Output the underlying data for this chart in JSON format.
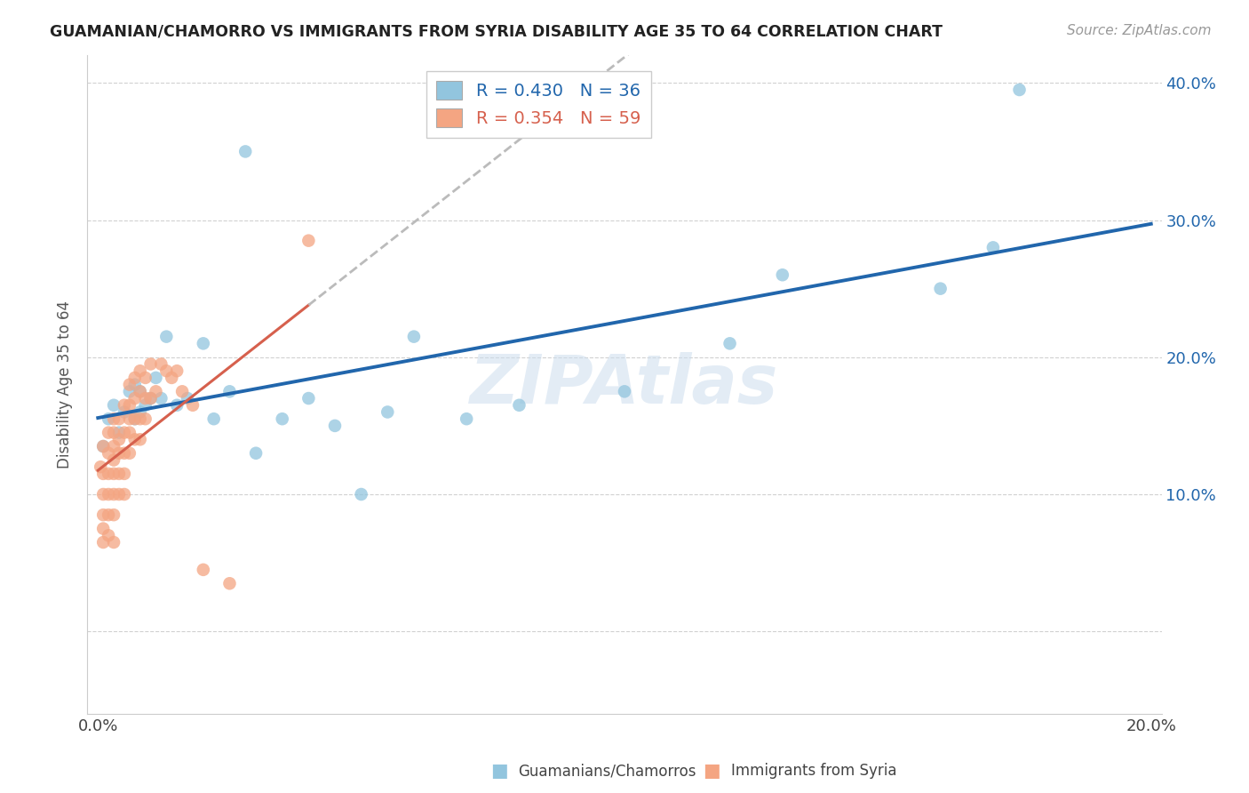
{
  "title": "GUAMANIAN/CHAMORRO VS IMMIGRANTS FROM SYRIA DISABILITY AGE 35 TO 64 CORRELATION CHART",
  "source": "Source: ZipAtlas.com",
  "xlabel_blue": "Guamanians/Chamorros",
  "xlabel_pink": "Immigrants from Syria",
  "ylabel_label": "Disability Age 35 to 64",
  "xlim": [
    -0.002,
    0.202
  ],
  "ylim": [
    -0.06,
    0.42
  ],
  "xticks": [
    0.0,
    0.05,
    0.1,
    0.15,
    0.2
  ],
  "xtick_labels": [
    "0.0%",
    "",
    "",
    "",
    "20.0%"
  ],
  "yticks": [
    0.0,
    0.1,
    0.2,
    0.3,
    0.4
  ],
  "ytick_right_labels": [
    "",
    "10.0%",
    "20.0%",
    "30.0%",
    "40.0%"
  ],
  "blue_R": 0.43,
  "blue_N": 36,
  "pink_R": 0.354,
  "pink_N": 59,
  "blue_color": "#92c5de",
  "pink_color": "#f4a582",
  "trendline_blue": "#2166ac",
  "trendline_pink": "#d6604d",
  "trendline_extrap": "#bbbbbb",
  "watermark": "ZIPAtlas",
  "blue_x": [
    0.001,
    0.002,
    0.003,
    0.004,
    0.005,
    0.006,
    0.007,
    0.007,
    0.008,
    0.008,
    0.009,
    0.01,
    0.011,
    0.012,
    0.013,
    0.015,
    0.017,
    0.02,
    0.022,
    0.025,
    0.028,
    0.03,
    0.035,
    0.04,
    0.05,
    0.055,
    0.06,
    0.07,
    0.08,
    0.1,
    0.13,
    0.16,
    0.17,
    0.175,
    0.12,
    0.045
  ],
  "blue_y": [
    0.135,
    0.155,
    0.165,
    0.145,
    0.16,
    0.175,
    0.155,
    0.18,
    0.16,
    0.175,
    0.165,
    0.17,
    0.185,
    0.17,
    0.215,
    0.165,
    0.17,
    0.21,
    0.155,
    0.175,
    0.35,
    0.13,
    0.155,
    0.17,
    0.1,
    0.16,
    0.215,
    0.155,
    0.165,
    0.175,
    0.26,
    0.25,
    0.28,
    0.395,
    0.21,
    0.15
  ],
  "pink_x": [
    0.0005,
    0.001,
    0.001,
    0.001,
    0.001,
    0.001,
    0.001,
    0.002,
    0.002,
    0.002,
    0.002,
    0.002,
    0.002,
    0.003,
    0.003,
    0.003,
    0.003,
    0.003,
    0.003,
    0.003,
    0.003,
    0.004,
    0.004,
    0.004,
    0.004,
    0.004,
    0.005,
    0.005,
    0.005,
    0.005,
    0.005,
    0.006,
    0.006,
    0.006,
    0.006,
    0.006,
    0.007,
    0.007,
    0.007,
    0.007,
    0.008,
    0.008,
    0.008,
    0.008,
    0.009,
    0.009,
    0.009,
    0.01,
    0.01,
    0.011,
    0.012,
    0.013,
    0.014,
    0.015,
    0.016,
    0.018,
    0.02,
    0.025,
    0.04
  ],
  "pink_y": [
    0.12,
    0.135,
    0.115,
    0.1,
    0.085,
    0.075,
    0.065,
    0.145,
    0.13,
    0.115,
    0.1,
    0.085,
    0.07,
    0.155,
    0.145,
    0.135,
    0.125,
    0.115,
    0.1,
    0.085,
    0.065,
    0.155,
    0.14,
    0.13,
    0.115,
    0.1,
    0.165,
    0.145,
    0.13,
    0.115,
    0.1,
    0.18,
    0.165,
    0.155,
    0.145,
    0.13,
    0.185,
    0.17,
    0.155,
    0.14,
    0.19,
    0.175,
    0.155,
    0.14,
    0.185,
    0.17,
    0.155,
    0.195,
    0.17,
    0.175,
    0.195,
    0.19,
    0.185,
    0.19,
    0.175,
    0.165,
    0.045,
    0.035,
    0.285
  ]
}
